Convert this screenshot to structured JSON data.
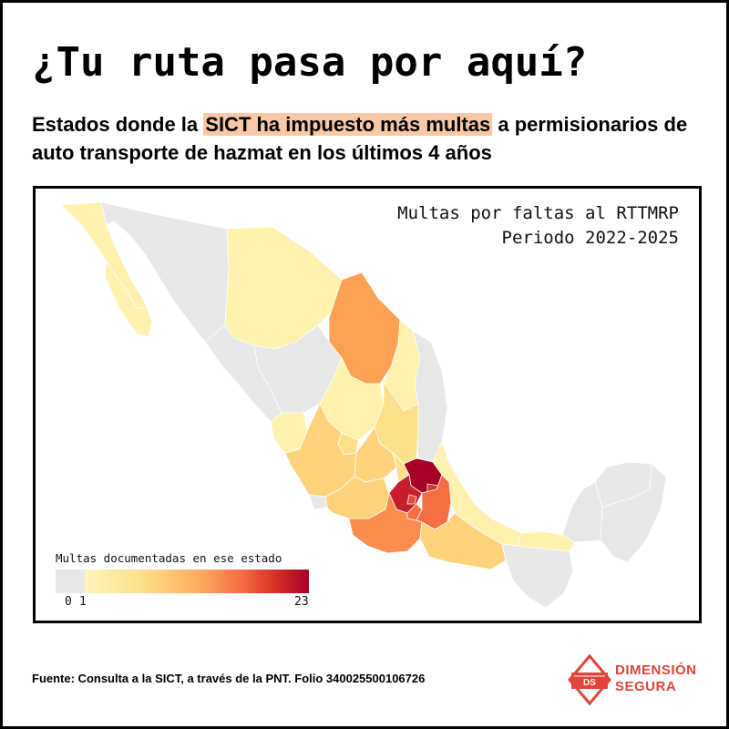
{
  "title": "¿Tu ruta pasa por aquí?",
  "subtitle": {
    "before": "Estados donde la ",
    "highlight": "SICT ha impuesto más multas",
    "after": " a permisionarios de auto transporte de hazmat en los últimos 4 años"
  },
  "map": {
    "title_line1": "Multas por faltas al RTTMRP",
    "title_line2": "Periodo 2022-2025",
    "legend": {
      "title": "Multas documentadas en ese estado",
      "min_label": "0",
      "low_label": "1",
      "max_label": "23",
      "range": [
        0,
        23
      ],
      "colors": [
        "#e8e8e8",
        "#fff5b8",
        "#fee08b",
        "#fdae61",
        "#f46d43",
        "#d73027",
        "#a50026"
      ]
    }
  },
  "footer": {
    "source": "Fuente: Consulta a la SICT, a través de la PNT. Folio 340025500106726"
  },
  "logo": {
    "line1": "DIMENSIÓN",
    "line2": "SEGURA",
    "monogram": "DS",
    "color": "#e0443a"
  }
}
